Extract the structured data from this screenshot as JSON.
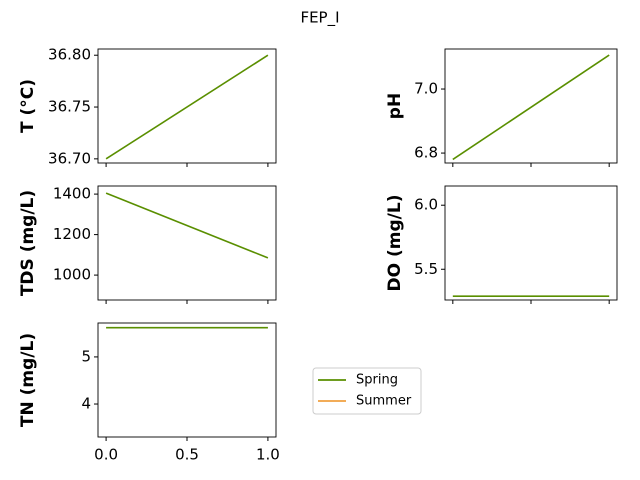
{
  "title": "FEP_I",
  "legend": [
    {
      "name": "Spring",
      "color": "#5a8f00"
    },
    {
      "name": "Summer",
      "color": "#f0a040"
    }
  ],
  "chart_data": [
    {
      "type": "line",
      "y_label": "T  (°C)",
      "x": [
        0,
        1
      ],
      "series": [
        {
          "name": "Spring",
          "color": "#5a8f00",
          "values": [
            36.7,
            36.8
          ]
        }
      ],
      "xlim": [
        -0.05,
        1.05
      ],
      "ylim": [
        36.696,
        36.806
      ],
      "yticks": [
        {
          "value": 36.7,
          "label": "36.70"
        },
        36.75,
        {
          "value": 36.8,
          "label": "36.80"
        }
      ]
    },
    {
      "type": "line",
      "y_label": "pH",
      "x": [
        0,
        1
      ],
      "series": [
        {
          "name": "Spring",
          "color": "#5a8f00",
          "values": [
            6.78,
            7.106
          ]
        }
      ],
      "xlim": [
        -0.05,
        1.05
      ],
      "ylim": [
        6.769,
        7.125
      ],
      "yticks": [
        6.8,
        {
          "value": 7,
          "label": "7.0"
        }
      ]
    },
    {
      "type": "line",
      "y_label": "TDS (mg/L)",
      "x": [
        0,
        1
      ],
      "series": [
        {
          "name": "Spring",
          "color": "#5a8f00",
          "values": [
            1405,
            1085
          ]
        }
      ],
      "xlim": [
        -0.05,
        1.05
      ],
      "ylim": [
        877,
        1440
      ],
      "yticks": [
        1000,
        1200,
        1400
      ]
    },
    {
      "type": "line",
      "y_label": "DO (mg/L)",
      "x": [
        0,
        1
      ],
      "series": [
        {
          "name": "Spring",
          "color": "#5a8f00",
          "values": [
            5.29,
            5.29
          ]
        }
      ],
      "xlim": [
        -0.05,
        1.05
      ],
      "ylim": [
        5.26,
        6.15
      ],
      "yticks": [
        5.5,
        {
          "value": 6,
          "label": "6.0"
        }
      ]
    },
    {
      "type": "line",
      "y_label": "TN (mg/L)",
      "x": [
        0,
        1
      ],
      "series": [
        {
          "name": "Spring",
          "color": "#5a8f00",
          "values": [
            5.62,
            5.62
          ]
        }
      ],
      "xlim": [
        -0.05,
        1.05
      ],
      "ylim": [
        3.3,
        5.72
      ],
      "yticks": [
        4,
        5
      ],
      "xticks": [
        {
          "value": 0,
          "label": "0.0"
        },
        0.5,
        {
          "value": 1,
          "label": "1.0"
        }
      ]
    }
  ]
}
